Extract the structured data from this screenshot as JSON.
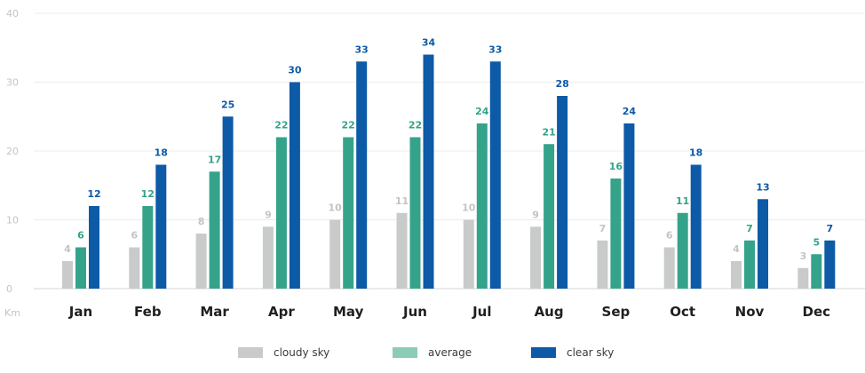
{
  "chart_data": {
    "type": "bar",
    "unit_label": "Km",
    "categories": [
      "Jan",
      "Feb",
      "Mar",
      "Apr",
      "May",
      "Jun",
      "Jul",
      "Aug",
      "Sep",
      "Oct",
      "Nov",
      "Dec"
    ],
    "series": [
      {
        "name": "cloudy sky",
        "color": "#c9cbca",
        "label_color": "#c4c4c4",
        "values": [
          4,
          6,
          8,
          9,
          10,
          11,
          10,
          9,
          7,
          6,
          4,
          3
        ]
      },
      {
        "name": "average",
        "color": "#35a38a",
        "label_color": "#35a38a",
        "values": [
          6,
          12,
          17,
          22,
          22,
          22,
          24,
          21,
          16,
          11,
          7,
          5
        ]
      },
      {
        "name": "clear sky",
        "color": "#0d5aa7",
        "label_color": "#0d5aa7",
        "values": [
          12,
          18,
          25,
          30,
          33,
          34,
          33,
          28,
          24,
          18,
          13,
          7
        ]
      }
    ],
    "yticks": [
      0,
      10,
      20,
      30,
      40
    ],
    "ylim": [
      0,
      40
    ],
    "grid": true,
    "legend_colors": [
      "#c9cbca",
      "#8ccbb5",
      "#0d5aa7"
    ],
    "legend_position": "bottom"
  }
}
